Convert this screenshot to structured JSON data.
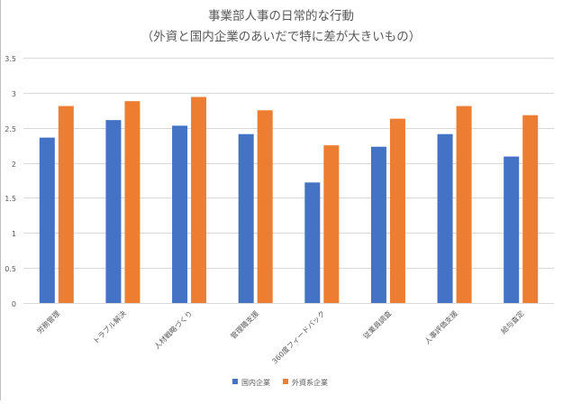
{
  "chart_data": {
    "type": "bar",
    "title": "事業部人事の日常的な行動",
    "subtitle": "（外資と国内企業のあいだで特に差が大きいもの）",
    "categories": [
      "労務管理",
      "トラブル解決",
      "人材戦略づくり",
      "管理職支援",
      "360度フィードバック",
      "従業員調査",
      "人事評価支援",
      "給与査定"
    ],
    "series": [
      {
        "name": "国内企業",
        "color": "#4472C4",
        "values": [
          2.36,
          2.61,
          2.53,
          2.41,
          1.72,
          2.23,
          2.41,
          2.09
        ]
      },
      {
        "name": "外資系企業",
        "color": "#ED7D31",
        "values": [
          2.81,
          2.88,
          2.94,
          2.75,
          2.25,
          2.63,
          2.81,
          2.68
        ]
      }
    ],
    "ylim": [
      0,
      3.5
    ],
    "yticks": [
      "0",
      "0.5",
      "1",
      "1.5",
      "2",
      "2.5",
      "3",
      "3.5"
    ],
    "grid": true,
    "legend_position": "bottom"
  }
}
